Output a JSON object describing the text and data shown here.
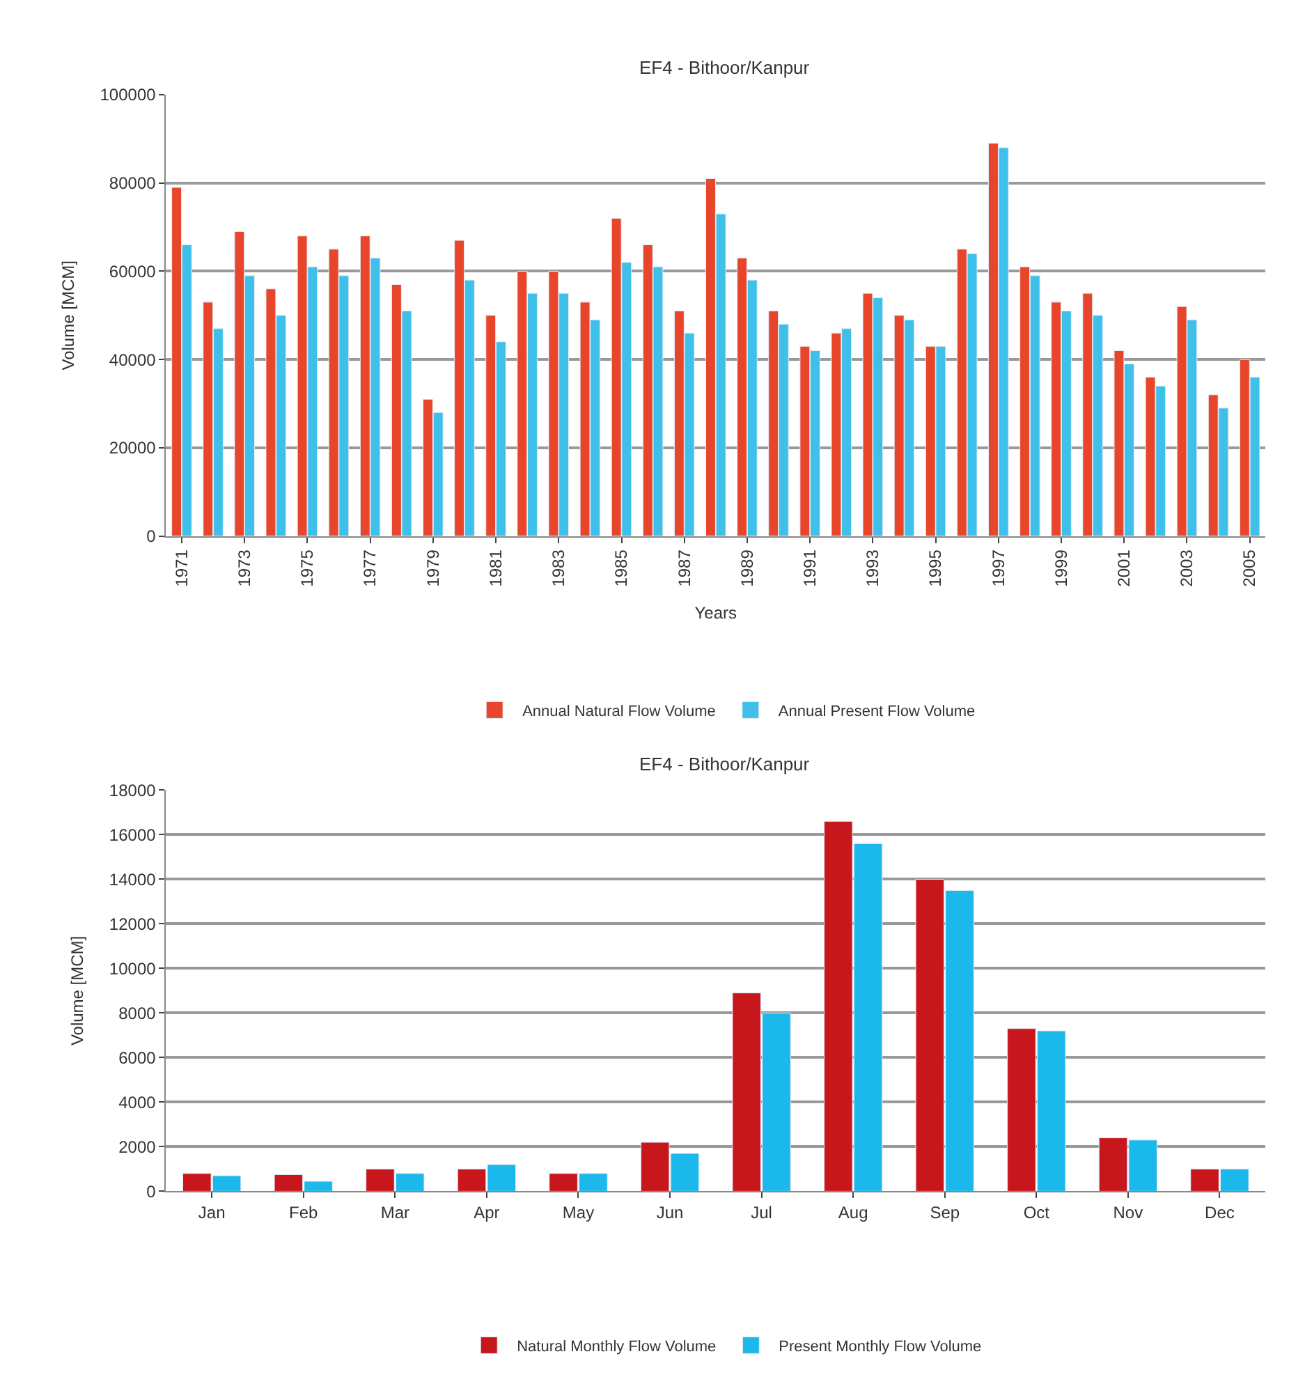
{
  "chart_data": [
    {
      "type": "bar",
      "title": "EF4 - Bithoor/Kanpur",
      "xlabel": "Years",
      "ylabel": "Volume [MCM]",
      "categories": [
        "1971",
        null,
        "1973",
        null,
        "1975",
        null,
        "1977",
        null,
        "1979",
        null,
        "1981",
        null,
        "1983",
        null,
        "1985",
        null,
        "1987",
        null,
        "1989",
        null,
        "1991",
        null,
        "1993",
        null,
        "1995",
        null,
        "1997",
        null,
        "1999",
        null,
        "2001",
        null,
        "2003",
        null,
        "2005"
      ],
      "series": [
        {
          "name": "Annual Natural Flow Volume",
          "color": "#e8462a",
          "values": [
            79000,
            53000,
            69000,
            56000,
            68000,
            65000,
            68000,
            57000,
            31000,
            67000,
            50000,
            60000,
            60000,
            53000,
            72000,
            66000,
            51000,
            81000,
            63000,
            51000,
            43000,
            46000,
            55000,
            50000,
            43000,
            65000,
            89000,
            61000,
            53000,
            55000,
            42000,
            36000,
            52000,
            32000,
            40000
          ]
        },
        {
          "name": "Annual Present Flow Volume",
          "color": "#3fc0ea",
          "values": [
            66000,
            47000,
            59000,
            50000,
            61000,
            59000,
            63000,
            51000,
            28000,
            58000,
            44000,
            55000,
            55000,
            49000,
            62000,
            61000,
            46000,
            73000,
            58000,
            48000,
            42000,
            47000,
            54000,
            49000,
            43000,
            64000,
            88000,
            59000,
            51000,
            50000,
            39000,
            34000,
            49000,
            29000,
            36000
          ]
        }
      ],
      "ylim": [
        0,
        100000
      ],
      "yticks": [
        0,
        20000,
        40000,
        60000,
        80000,
        100000
      ],
      "grid": "y",
      "legend": "bottom"
    },
    {
      "type": "bar",
      "title": "EF4 - Bithoor/Kanpur",
      "ylabel": "Volume [MCM]",
      "categories": [
        "Jan",
        "Feb",
        "Mar",
        "Apr",
        "May",
        "Jun",
        "Jul",
        "Aug",
        "Sep",
        "Oct",
        "Nov",
        "Dec"
      ],
      "series": [
        {
          "name": "Natural Monthly Flow Volume",
          "color": "#c8161d",
          "values": [
            800,
            750,
            1000,
            1000,
            800,
            2200,
            8900,
            16600,
            14000,
            7300,
            2400,
            1000
          ]
        },
        {
          "name": "Present Monthly Flow Volume",
          "color": "#1bb8ec",
          "values": [
            700,
            450,
            800,
            1200,
            800,
            1700,
            8000,
            15600,
            13500,
            7200,
            2300,
            1000
          ]
        }
      ],
      "ylim": [
        0,
        18000
      ],
      "yticks": [
        0,
        2000,
        4000,
        6000,
        8000,
        10000,
        12000,
        14000,
        16000,
        18000
      ],
      "grid": "y",
      "legend": "bottom"
    }
  ]
}
